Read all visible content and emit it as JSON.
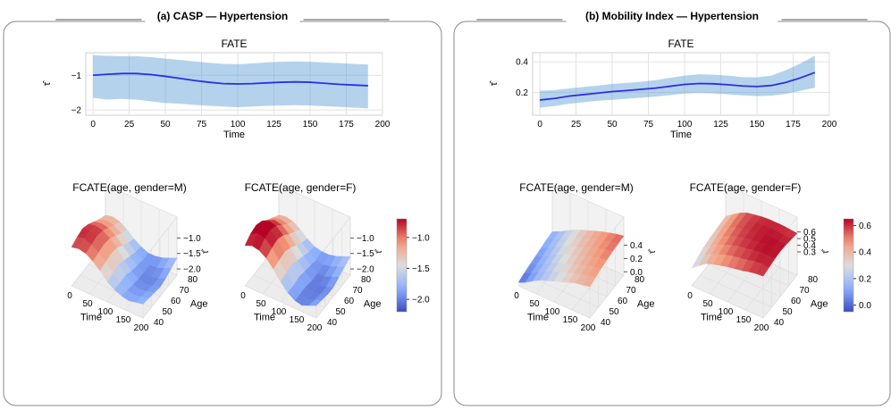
{
  "panels": [
    {
      "title": "(a) CASP — Hypertension",
      "fate": {
        "type": "line",
        "title": "FATE",
        "xlabel": "Time",
        "ylabel": "τ̂",
        "xlim": [
          -5,
          200
        ],
        "ylim": [
          -2.15,
          -0.35
        ],
        "xticks": [
          0,
          25,
          50,
          75,
          100,
          125,
          150,
          175,
          200
        ],
        "yticks": [
          -2,
          -1
        ],
        "ytick_labels": [
          "−2",
          "−1"
        ],
        "x": [
          0,
          10,
          20,
          30,
          40,
          50,
          60,
          70,
          80,
          90,
          100,
          110,
          120,
          130,
          140,
          150,
          160,
          170,
          180,
          190
        ],
        "mean": [
          -1.0,
          -0.97,
          -0.95,
          -0.95,
          -0.98,
          -1.03,
          -1.09,
          -1.15,
          -1.2,
          -1.24,
          -1.25,
          -1.24,
          -1.22,
          -1.2,
          -1.19,
          -1.2,
          -1.23,
          -1.26,
          -1.28,
          -1.3
        ],
        "lower": [
          -1.65,
          -1.7,
          -1.68,
          -1.7,
          -1.75,
          -1.8,
          -1.82,
          -1.85,
          -1.88,
          -1.9,
          -1.92,
          -1.9,
          -1.88,
          -1.87,
          -1.86,
          -1.87,
          -1.89,
          -1.91,
          -1.93,
          -1.95
        ],
        "upper": [
          -0.42,
          -0.44,
          -0.45,
          -0.45,
          -0.48,
          -0.52,
          -0.56,
          -0.6,
          -0.64,
          -0.67,
          -0.68,
          -0.66,
          -0.63,
          -0.61,
          -0.6,
          -0.61,
          -0.63,
          -0.65,
          -0.67,
          -0.69
        ]
      },
      "surfaces": [
        {
          "type": "surface3d",
          "title": "FCATE(age, gender=M)",
          "xlabel": "Time",
          "ylabel": "Age",
          "xticks": [
            "0",
            "50",
            "100",
            "150",
            "200"
          ],
          "yticks": [
            "40",
            "50",
            "60",
            "70",
            "80"
          ],
          "zticks": [
            "−1.0",
            "−1.5",
            "−2.0"
          ],
          "zlabel": "τ̂",
          "zrange": [
            -2.2,
            -0.7
          ],
          "z_grid": [
            [
              -0.95,
              -0.9,
              -0.95,
              -1.1,
              -1.3,
              -1.55,
              -1.7,
              -1.8,
              -1.85,
              -1.8,
              -1.75
            ],
            [
              -0.85,
              -0.8,
              -0.9,
              -1.05,
              -1.25,
              -1.5,
              -1.7,
              -1.85,
              -1.9,
              -1.85,
              -1.8
            ],
            [
              -0.8,
              -0.78,
              -0.85,
              -1.0,
              -1.2,
              -1.45,
              -1.7,
              -1.9,
              -1.95,
              -1.9,
              -1.85
            ],
            [
              -0.9,
              -0.85,
              -0.9,
              -1.05,
              -1.25,
              -1.55,
              -1.8,
              -1.95,
              -2.0,
              -1.95,
              -1.9
            ],
            [
              -1.05,
              -1.0,
              -1.05,
              -1.2,
              -1.4,
              -1.65,
              -1.85,
              -1.95,
              -2.0,
              -1.95,
              -1.85
            ],
            [
              -1.2,
              -1.15,
              -1.2,
              -1.35,
              -1.55,
              -1.75,
              -1.9,
              -1.95,
              -1.95,
              -1.85,
              -1.75
            ],
            [
              -1.3,
              -1.25,
              -1.3,
              -1.45,
              -1.65,
              -1.8,
              -1.9,
              -1.9,
              -1.85,
              -1.75,
              -1.65
            ]
          ]
        },
        {
          "type": "surface3d",
          "title": "FCATE(age, gender=F)",
          "xlabel": "Time",
          "ylabel": "Age",
          "xticks": [
            "0",
            "50",
            "100",
            "150",
            "200"
          ],
          "yticks": [
            "40",
            "50",
            "60",
            "70",
            "80"
          ],
          "zticks": [
            "−1.0",
            "−1.5",
            "−2.0"
          ],
          "zlabel": "τ̂",
          "zrange": [
            -2.2,
            -0.7
          ],
          "z_grid": [
            [
              -0.9,
              -0.8,
              -0.85,
              -1.0,
              -1.25,
              -1.55,
              -1.8,
              -1.95,
              -2.0,
              -1.9,
              -1.8
            ],
            [
              -0.75,
              -0.65,
              -0.7,
              -0.9,
              -1.2,
              -1.5,
              -1.8,
              -1.95,
              -2.05,
              -1.95,
              -1.85
            ],
            [
              -0.7,
              -0.6,
              -0.65,
              -0.85,
              -1.15,
              -1.45,
              -1.75,
              -1.95,
              -2.05,
              -2.0,
              -1.9
            ],
            [
              -0.8,
              -0.7,
              -0.75,
              -0.95,
              -1.25,
              -1.55,
              -1.8,
              -2.0,
              -2.05,
              -2.0,
              -1.9
            ],
            [
              -1.0,
              -0.9,
              -0.95,
              -1.15,
              -1.4,
              -1.65,
              -1.85,
              -2.0,
              -2.0,
              -1.9,
              -1.8
            ],
            [
              -1.15,
              -1.1,
              -1.15,
              -1.3,
              -1.55,
              -1.75,
              -1.9,
              -1.95,
              -1.9,
              -1.8,
              -1.7
            ],
            [
              -1.3,
              -1.25,
              -1.3,
              -1.45,
              -1.65,
              -1.8,
              -1.85,
              -1.85,
              -1.8,
              -1.7,
              -1.6
            ]
          ]
        }
      ],
      "colorbar": {
        "range": [
          -2.2,
          -0.7
        ],
        "tick_values": [
          -1.0,
          -1.5,
          -2.0
        ],
        "tick_labels": [
          "−1.0",
          "−1.5",
          "−2.0"
        ]
      }
    },
    {
      "title": "(b) Mobility Index — Hypertension",
      "fate": {
        "type": "line",
        "title": "FATE",
        "xlabel": "Time",
        "ylabel": "τ̂",
        "xlim": [
          -5,
          200
        ],
        "ylim": [
          0.05,
          0.46
        ],
        "xticks": [
          0,
          25,
          50,
          75,
          100,
          125,
          150,
          175,
          200
        ],
        "yticks": [
          0.2,
          0.4
        ],
        "ytick_labels": [
          "0.2",
          "0.4"
        ],
        "x": [
          0,
          10,
          20,
          30,
          40,
          50,
          60,
          70,
          80,
          90,
          100,
          110,
          120,
          130,
          140,
          150,
          160,
          170,
          180,
          190
        ],
        "mean": [
          0.15,
          0.16,
          0.175,
          0.185,
          0.195,
          0.205,
          0.212,
          0.22,
          0.228,
          0.24,
          0.252,
          0.258,
          0.256,
          0.25,
          0.242,
          0.238,
          0.245,
          0.265,
          0.295,
          0.33
        ],
        "lower": [
          0.1,
          0.11,
          0.125,
          0.135,
          0.145,
          0.15,
          0.158,
          0.165,
          0.172,
          0.182,
          0.192,
          0.196,
          0.193,
          0.187,
          0.18,
          0.175,
          0.178,
          0.19,
          0.21,
          0.23
        ],
        "upper": [
          0.21,
          0.215,
          0.225,
          0.235,
          0.245,
          0.255,
          0.262,
          0.27,
          0.28,
          0.295,
          0.31,
          0.318,
          0.316,
          0.31,
          0.3,
          0.298,
          0.31,
          0.345,
          0.39,
          0.44
        ]
      },
      "surfaces": [
        {
          "type": "surface3d",
          "title": "FCATE(age, gender=M)",
          "xlabel": "Time",
          "ylabel": "Age",
          "xticks": [
            "0",
            "50",
            "100",
            "150",
            "200"
          ],
          "yticks": [
            "40",
            "50",
            "60",
            "70",
            "80"
          ],
          "zticks": [
            "0.4",
            "0.2",
            "0.0"
          ],
          "zlabel": "τ̂",
          "zrange": [
            -0.05,
            0.65
          ],
          "z_grid": [
            [
              0.0,
              0.05,
              0.12,
              0.18,
              0.22,
              0.26,
              0.3,
              0.34,
              0.38,
              0.4,
              0.42
            ],
            [
              0.03,
              0.08,
              0.14,
              0.2,
              0.25,
              0.29,
              0.33,
              0.37,
              0.4,
              0.43,
              0.45
            ],
            [
              0.05,
              0.1,
              0.16,
              0.22,
              0.27,
              0.31,
              0.35,
              0.39,
              0.43,
              0.46,
              0.48
            ],
            [
              0.07,
              0.12,
              0.18,
              0.24,
              0.29,
              0.33,
              0.37,
              0.41,
              0.45,
              0.48,
              0.5
            ],
            [
              0.09,
              0.14,
              0.2,
              0.26,
              0.31,
              0.35,
              0.39,
              0.43,
              0.47,
              0.5,
              0.52
            ],
            [
              0.11,
              0.16,
              0.22,
              0.28,
              0.33,
              0.37,
              0.41,
              0.45,
              0.48,
              0.51,
              0.53
            ],
            [
              0.12,
              0.17,
              0.23,
              0.29,
              0.34,
              0.38,
              0.42,
              0.46,
              0.49,
              0.52,
              0.54
            ]
          ]
        },
        {
          "type": "surface3d",
          "title": "FCATE(age, gender=F)",
          "xlabel": "Time",
          "ylabel": "Age",
          "xticks": [
            "0",
            "50",
            "100",
            "150",
            "200"
          ],
          "yticks": [
            "40",
            "50",
            "60",
            "70",
            "80"
          ],
          "zticks": [
            "0.6",
            "0.5",
            "0.4",
            "0.3"
          ],
          "zlabel": "τ̂",
          "zrange": [
            -0.05,
            0.65
          ],
          "z_grid": [
            [
              0.22,
              0.3,
              0.38,
              0.42,
              0.45,
              0.48,
              0.5,
              0.52,
              0.55,
              0.57,
              0.58
            ],
            [
              0.26,
              0.35,
              0.42,
              0.46,
              0.5,
              0.53,
              0.55,
              0.57,
              0.6,
              0.61,
              0.6
            ],
            [
              0.3,
              0.38,
              0.45,
              0.5,
              0.54,
              0.57,
              0.59,
              0.61,
              0.63,
              0.63,
              0.62
            ],
            [
              0.32,
              0.4,
              0.47,
              0.52,
              0.56,
              0.59,
              0.61,
              0.62,
              0.64,
              0.64,
              0.63
            ],
            [
              0.33,
              0.42,
              0.49,
              0.54,
              0.57,
              0.6,
              0.62,
              0.63,
              0.64,
              0.63,
              0.62
            ],
            [
              0.34,
              0.43,
              0.5,
              0.55,
              0.58,
              0.6,
              0.62,
              0.62,
              0.62,
              0.61,
              0.6
            ],
            [
              0.35,
              0.43,
              0.5,
              0.55,
              0.57,
              0.59,
              0.6,
              0.6,
              0.6,
              0.59,
              0.58
            ]
          ]
        }
      ],
      "colorbar": {
        "range": [
          -0.05,
          0.65
        ],
        "tick_values": [
          0.6,
          0.4,
          0.2,
          0.0
        ],
        "tick_labels": [
          "0.6",
          "0.4",
          "0.2",
          "0.0"
        ]
      }
    }
  ]
}
